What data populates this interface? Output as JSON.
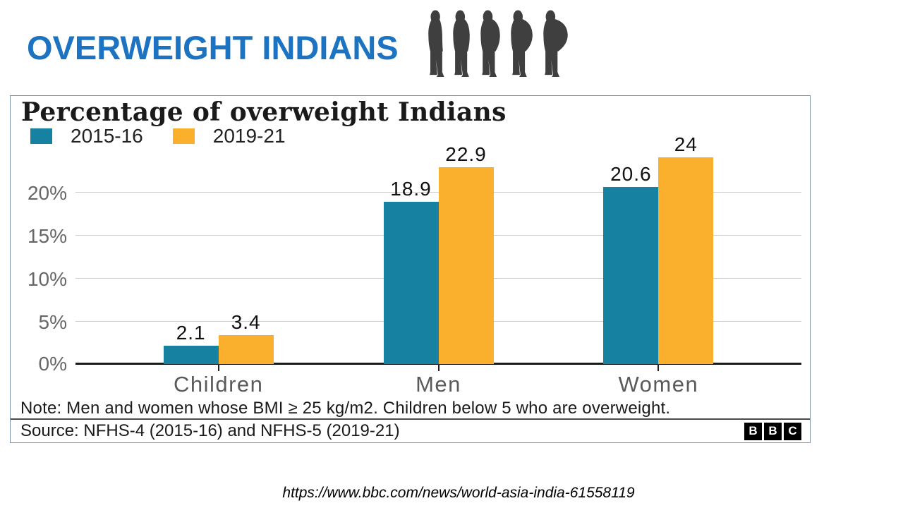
{
  "header": {
    "title": "OVERWEIGHT INDIANS",
    "icon_count": 5
  },
  "colors": {
    "title_blue": "#1B73C1",
    "silhouette": "#3F3F3F",
    "teal": "#1681A1",
    "orange": "#FBB02D",
    "card_border": "#7D92A8",
    "grid": "#CCCCCC",
    "axis": "#1A1A1A"
  },
  "chart_data": {
    "type": "bar",
    "title": "Percentage of overweight Indians",
    "categories": [
      "Children",
      "Men",
      "Women"
    ],
    "series": [
      {
        "name": "2015-16",
        "color": "#1681A1",
        "values": [
          2.1,
          18.9,
          20.6
        ],
        "display_values": [
          "2.1",
          "18.9",
          "20.6"
        ]
      },
      {
        "name": "2019-21",
        "color": "#FBB02D",
        "values": [
          3.4,
          22.9,
          24
        ],
        "display_values": [
          "3.4",
          "22.9",
          "24"
        ]
      }
    ],
    "yticks": [
      0,
      5,
      10,
      15,
      20
    ],
    "ytick_labels": [
      "0%",
      "5%",
      "10%",
      "15%",
      "20%"
    ],
    "ylim": [
      0,
      25.5
    ],
    "grid": true,
    "legend_position": "top-left",
    "note": "Note: Men and women whose BMI ≥ 25 kg/m2. Children below 5 who are overweight.",
    "source": "Source: NFHS-4 (2015-16) and NFHS-5 (2019-21)",
    "logo_letters": [
      "B",
      "B",
      "C"
    ]
  },
  "footer": {
    "url": "https://www.bbc.com/news/world-asia-india-61558119"
  }
}
